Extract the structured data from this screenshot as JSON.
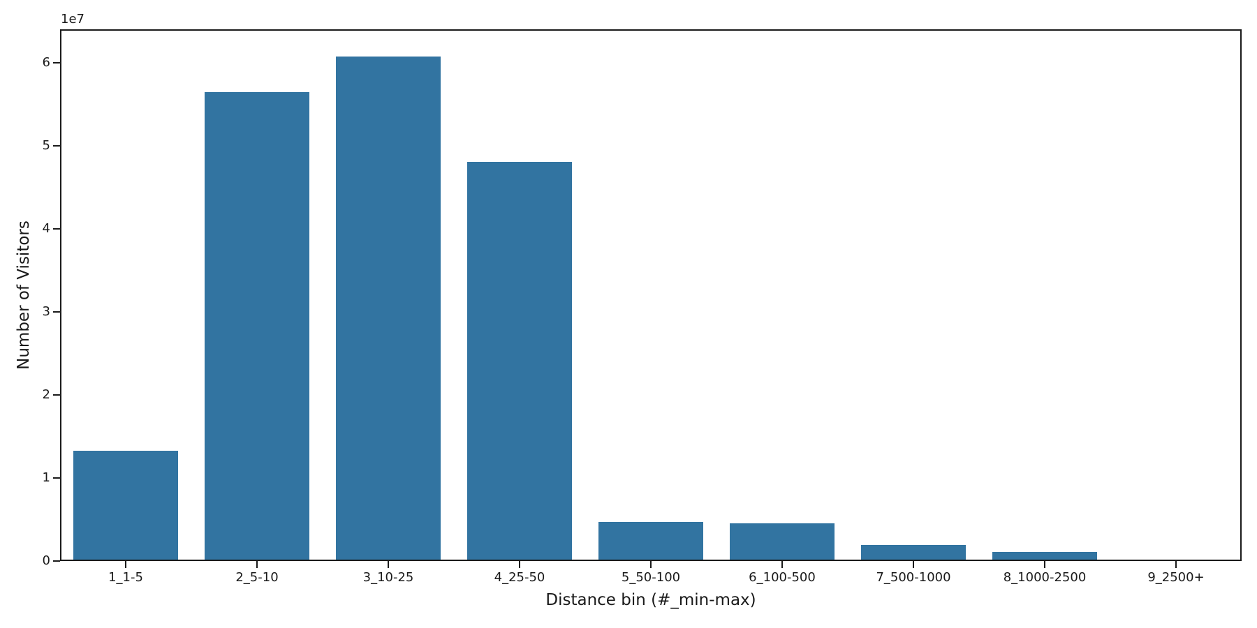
{
  "chart_data": {
    "type": "bar",
    "categories": [
      "1_1-5",
      "2_5-10",
      "3_10-25",
      "4_25-50",
      "5_50-100",
      "6_100-500",
      "7_500-1000",
      "8_1000-2500",
      "9_2500+"
    ],
    "values": [
      13300000,
      56400000,
      60700000,
      48000000,
      4700000,
      4500000,
      1900000,
      1100000,
      0
    ],
    "title": "",
    "xlabel": "Distance bin (#_min-max)",
    "ylabel": "Number of Visitors",
    "ylim": [
      0,
      64000000
    ],
    "yticks": [
      0,
      10000000,
      20000000,
      30000000,
      40000000,
      50000000,
      60000000
    ],
    "ytick_labels": [
      "0",
      "1",
      "2",
      "3",
      "4",
      "5",
      "6"
    ],
    "y_offset_text": "1e7",
    "bar_color": "#3274a1",
    "axis_color": "#1a1a1a",
    "bar_width_fraction": 0.8,
    "grid": false,
    "legend": "none"
  }
}
